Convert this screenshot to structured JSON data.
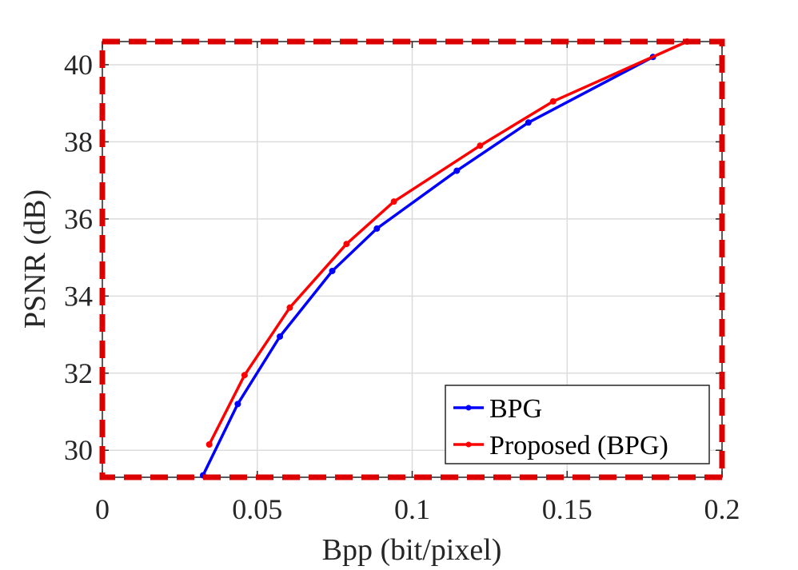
{
  "chart_data": {
    "type": "line",
    "title": "",
    "xlabel": "Bpp (bit/pixel)",
    "ylabel": "PSNR (dB)",
    "xlim": [
      0,
      0.2
    ],
    "ylim": [
      29.3,
      40.6
    ],
    "xticks": [
      0,
      0.05,
      0.1,
      0.15,
      0.2
    ],
    "xtick_labels": [
      "0",
      "0.05",
      "0.1",
      "0.15",
      "0.2"
    ],
    "yticks": [
      30,
      32,
      34,
      36,
      38,
      40
    ],
    "ytick_labels": [
      "30",
      "32",
      "34",
      "36",
      "38",
      "40"
    ],
    "grid": true,
    "legend_position": "bottom-right",
    "series": [
      {
        "name": "BPG",
        "color": "#0000ff",
        "x": [
          0.0325,
          0.0437,
          0.0573,
          0.0742,
          0.0886,
          0.1144,
          0.1375,
          0.1777
        ],
        "y": [
          29.35,
          31.2,
          32.95,
          34.65,
          35.75,
          37.25,
          38.5,
          40.2
        ]
      },
      {
        "name": "Proposed (BPG)",
        "color": "#ff0000",
        "x": [
          0.0345,
          0.0459,
          0.0605,
          0.0788,
          0.0941,
          0.1219,
          0.1455,
          0.1887
        ],
        "y": [
          30.15,
          31.95,
          33.7,
          35.35,
          36.45,
          37.9,
          39.05,
          40.6
        ]
      }
    ],
    "highlight_box_color": "#dd0000"
  }
}
